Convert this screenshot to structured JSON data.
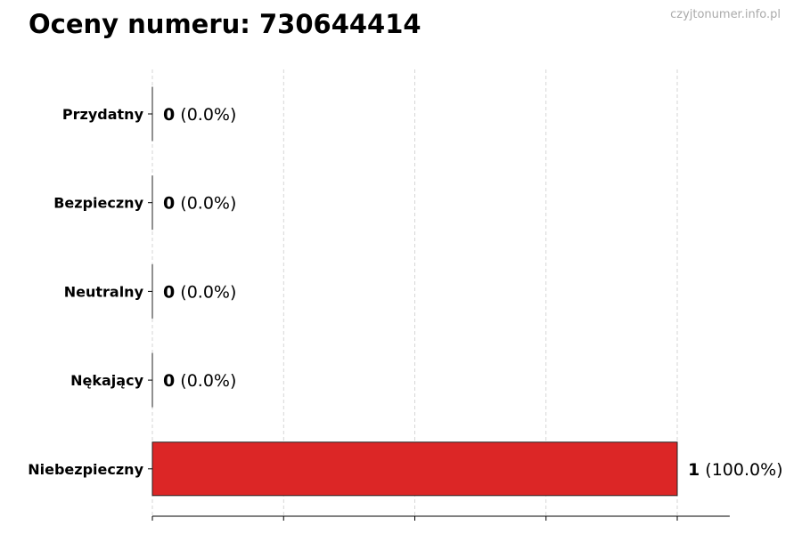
{
  "title": "Oceny numeru: 730644414",
  "watermark": "czyjtonumer.info.pl",
  "chart_data": {
    "type": "bar",
    "orientation": "horizontal",
    "title": "Oceny numeru: 730644414",
    "categories": [
      "Przydatny",
      "Bezpieczny",
      "Neutralny",
      "Nękający",
      "Niebezpieczny"
    ],
    "values": [
      0,
      0,
      0,
      0,
      1
    ],
    "data_labels": [
      {
        "count": "0",
        "pct": "(0.0%)"
      },
      {
        "count": "0",
        "pct": "(0.0%)"
      },
      {
        "count": "0",
        "pct": "(0.0%)"
      },
      {
        "count": "0",
        "pct": "(0.0%)"
      },
      {
        "count": "1",
        "pct": "(100.0%)"
      }
    ],
    "colors": [
      "#2ca02c",
      "#2ca02c",
      "#999999",
      "#e08020",
      "#dc2626"
    ],
    "xlim": [
      0,
      1.1
    ],
    "xticks": [
      0,
      0.25,
      0.5,
      0.75,
      1
    ],
    "grid": "vertical dashed",
    "xlabel": "",
    "ylabel": ""
  }
}
